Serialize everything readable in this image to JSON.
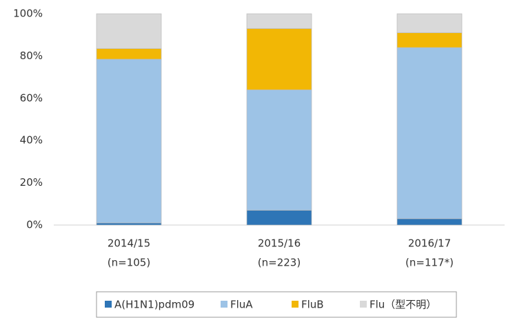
{
  "chart_data": {
    "type": "stacked_bar",
    "categories": [
      "2014/15",
      "2015/16",
      "2016/17"
    ],
    "category_notes": [
      "(n=105)",
      "(n=223)",
      "(n=117*)"
    ],
    "series": [
      {
        "name": "A(H1N1)pdm09",
        "color": "#2e75b6",
        "values": [
          1,
          7,
          3
        ]
      },
      {
        "name": "FluA",
        "color": "#9dc3e6",
        "values": [
          77.5,
          57,
          81
        ]
      },
      {
        "name": "FluB",
        "color": "#f2b705",
        "values": [
          5,
          29,
          7
        ]
      },
      {
        "name": "Flu（型不明）",
        "color": "#d9d9d9",
        "values": [
          16.5,
          7,
          9
        ]
      }
    ],
    "ylim": [
      0,
      100
    ],
    "yticks": [
      {
        "value": 0,
        "label": "0%"
      },
      {
        "value": 20,
        "label": "20%"
      },
      {
        "value": 40,
        "label": "40%"
      },
      {
        "value": 60,
        "label": "60%"
      },
      {
        "value": 80,
        "label": "80%"
      },
      {
        "value": 100,
        "label": "100%"
      }
    ],
    "grid": false,
    "legend": "bottom"
  }
}
